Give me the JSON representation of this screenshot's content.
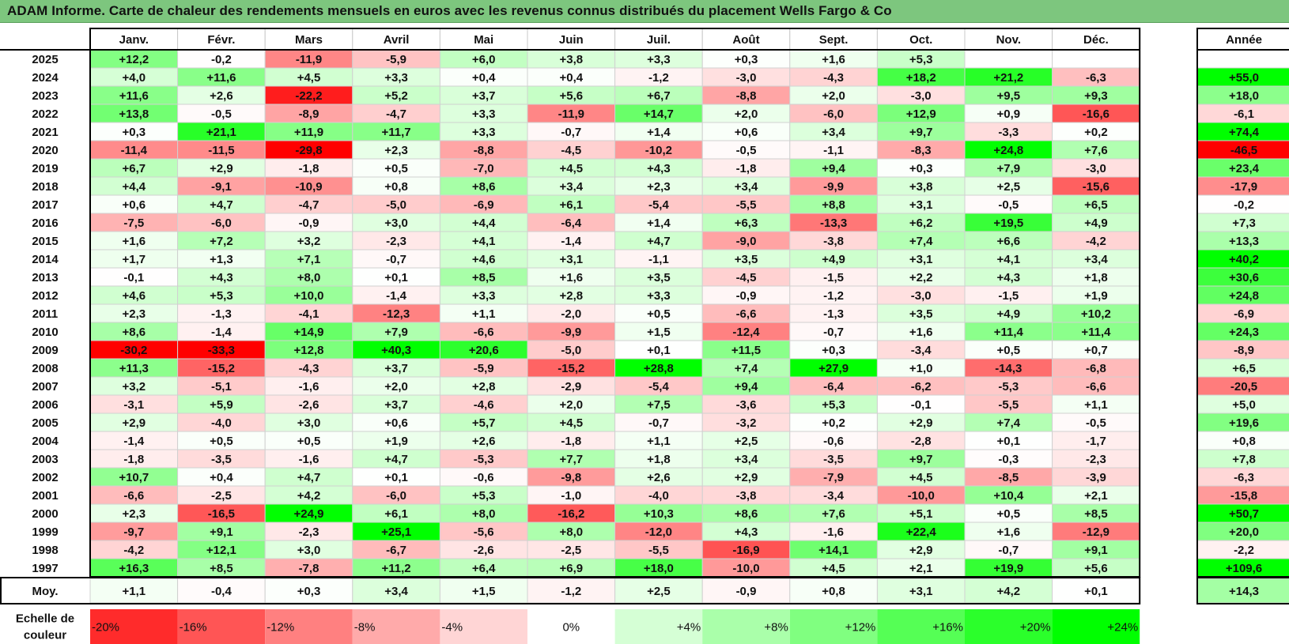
{
  "title": "ADAM Informe. Carte de chaleur des rendements mensuels en euros avec les revenus connus distribués du placement Wells Fargo & Co",
  "chart_data": {
    "type": "heatmap",
    "columns": [
      "Janv.",
      "Févr.",
      "Mars",
      "Avril",
      "Mai",
      "Juin",
      "Juil.",
      "Août",
      "Sept.",
      "Oct.",
      "Nov.",
      "Déc."
    ],
    "year_column_label": "Année",
    "average_row_label": "Moy.",
    "rows": [
      {
        "year": "2025",
        "months": [
          12.2,
          -0.2,
          -11.9,
          -5.9,
          6.0,
          3.8,
          3.3,
          0.3,
          1.6,
          5.3,
          null,
          null
        ],
        "annual": null
      },
      {
        "year": "2024",
        "months": [
          4.0,
          11.6,
          4.5,
          3.3,
          0.4,
          0.4,
          -1.2,
          -3.0,
          -4.3,
          18.2,
          21.2,
          -6.3
        ],
        "annual": 55.0
      },
      {
        "year": "2023",
        "months": [
          11.6,
          2.6,
          -22.2,
          5.2,
          3.7,
          5.6,
          6.7,
          -8.8,
          2.0,
          -3.0,
          9.5,
          9.3
        ],
        "annual": 18.0
      },
      {
        "year": "2022",
        "months": [
          13.8,
          -0.5,
          -8.9,
          -4.7,
          3.3,
          -11.9,
          14.7,
          2.0,
          -6.0,
          12.9,
          0.9,
          -16.6
        ],
        "annual": -6.1
      },
      {
        "year": "2021",
        "months": [
          0.3,
          21.1,
          11.9,
          11.7,
          3.3,
          -0.7,
          1.4,
          0.6,
          3.4,
          9.7,
          -3.3,
          0.2
        ],
        "annual": 74.4
      },
      {
        "year": "2020",
        "months": [
          -11.4,
          -11.5,
          -29.8,
          2.3,
          -8.8,
          -4.5,
          -10.2,
          -0.5,
          -1.1,
          -8.3,
          24.8,
          7.6
        ],
        "annual": -46.5
      },
      {
        "year": "2019",
        "months": [
          6.7,
          2.9,
          -1.8,
          0.5,
          -7.0,
          4.5,
          4.3,
          -1.8,
          9.4,
          0.3,
          7.9,
          -3.0
        ],
        "annual": 23.4
      },
      {
        "year": "2018",
        "months": [
          4.4,
          -9.1,
          -10.9,
          0.8,
          8.6,
          3.4,
          2.3,
          3.4,
          -9.9,
          3.8,
          2.5,
          -15.6
        ],
        "annual": -17.9
      },
      {
        "year": "2017",
        "months": [
          0.6,
          4.7,
          -4.7,
          -5.0,
          -6.9,
          6.1,
          -5.4,
          -5.5,
          8.8,
          3.1,
          -0.5,
          6.5
        ],
        "annual": -0.2
      },
      {
        "year": "2016",
        "months": [
          -7.5,
          -6.0,
          -0.9,
          3.0,
          4.4,
          -6.4,
          1.4,
          6.3,
          -13.3,
          6.2,
          19.5,
          4.9
        ],
        "annual": 7.3
      },
      {
        "year": "2015",
        "months": [
          1.6,
          7.2,
          3.2,
          -2.3,
          4.1,
          -1.4,
          4.7,
          -9.0,
          -3.8,
          7.4,
          6.6,
          -4.2
        ],
        "annual": 13.3
      },
      {
        "year": "2014",
        "months": [
          1.7,
          1.3,
          7.1,
          -0.7,
          4.6,
          3.1,
          -1.1,
          3.5,
          4.9,
          3.1,
          4.1,
          3.4
        ],
        "annual": 40.2
      },
      {
        "year": "2013",
        "months": [
          -0.1,
          4.3,
          8.0,
          0.1,
          8.5,
          1.6,
          3.5,
          -4.5,
          -1.5,
          2.2,
          4.3,
          1.8
        ],
        "annual": 30.6
      },
      {
        "year": "2012",
        "months": [
          4.6,
          5.3,
          10.0,
          -1.4,
          3.3,
          2.8,
          3.3,
          -0.9,
          -1.2,
          -3.0,
          -1.5,
          1.9
        ],
        "annual": 24.8
      },
      {
        "year": "2011",
        "months": [
          2.3,
          -1.3,
          -4.1,
          -12.3,
          1.1,
          -2.0,
          0.5,
          -6.6,
          -1.3,
          3.5,
          4.9,
          10.2
        ],
        "annual": -6.9
      },
      {
        "year": "2010",
        "months": [
          8.6,
          -1.4,
          14.9,
          7.9,
          -6.6,
          -9.9,
          1.5,
          -12.4,
          -0.7,
          1.6,
          11.4,
          11.4
        ],
        "annual": 24.3
      },
      {
        "year": "2009",
        "months": [
          -30.2,
          -33.3,
          12.8,
          40.3,
          20.6,
          -5.0,
          0.1,
          11.5,
          0.3,
          -3.4,
          0.5,
          0.7
        ],
        "annual": -8.9
      },
      {
        "year": "2008",
        "months": [
          11.3,
          -15.2,
          -4.3,
          3.7,
          -5.9,
          -15.2,
          28.8,
          7.4,
          27.9,
          1.0,
          -14.3,
          -6.8
        ],
        "annual": 6.5
      },
      {
        "year": "2007",
        "months": [
          3.2,
          -5.1,
          -1.6,
          2.0,
          2.8,
          -2.9,
          -5.4,
          9.4,
          -6.4,
          -6.2,
          -5.3,
          -6.6
        ],
        "annual": -20.5
      },
      {
        "year": "2006",
        "months": [
          -3.1,
          5.9,
          -2.6,
          3.7,
          -4.6,
          2.0,
          7.5,
          -3.6,
          5.3,
          -0.1,
          -5.5,
          1.1
        ],
        "annual": 5.0
      },
      {
        "year": "2005",
        "months": [
          2.9,
          -4.0,
          3.0,
          0.6,
          5.7,
          4.5,
          -0.7,
          -3.2,
          0.2,
          2.9,
          7.4,
          -0.5
        ],
        "annual": 19.6
      },
      {
        "year": "2004",
        "months": [
          -1.4,
          0.5,
          0.5,
          1.9,
          2.6,
          -1.8,
          1.1,
          2.5,
          -0.6,
          -2.8,
          0.1,
          -1.7
        ],
        "annual": 0.8
      },
      {
        "year": "2003",
        "months": [
          -1.8,
          -3.5,
          -1.6,
          4.7,
          -5.3,
          7.7,
          1.8,
          3.4,
          -3.5,
          9.7,
          -0.3,
          -2.3
        ],
        "annual": 7.8
      },
      {
        "year": "2002",
        "months": [
          10.7,
          0.4,
          4.7,
          0.1,
          -0.6,
          -9.8,
          2.6,
          2.9,
          -7.9,
          4.5,
          -8.5,
          -3.9
        ],
        "annual": -6.3
      },
      {
        "year": "2001",
        "months": [
          -6.6,
          -2.5,
          4.2,
          -6.0,
          5.3,
          -1.0,
          -4.0,
          -3.8,
          -3.4,
          -10.0,
          10.4,
          2.1
        ],
        "annual": -15.8
      },
      {
        "year": "2000",
        "months": [
          2.3,
          -16.5,
          24.9,
          6.1,
          8.0,
          -16.2,
          10.3,
          8.6,
          7.6,
          5.1,
          0.5,
          8.5
        ],
        "annual": 50.7
      },
      {
        "year": "1999",
        "months": [
          -9.7,
          9.1,
          -2.3,
          25.1,
          -5.6,
          8.0,
          -12.0,
          4.3,
          -1.6,
          22.4,
          1.6,
          -12.9
        ],
        "annual": 20.0
      },
      {
        "year": "1998",
        "months": [
          -4.2,
          12.1,
          3.0,
          -6.7,
          -2.6,
          -2.5,
          -5.5,
          -16.9,
          14.1,
          2.9,
          -0.7,
          9.1
        ],
        "annual": -2.2
      },
      {
        "year": "1997",
        "months": [
          16.3,
          8.5,
          -7.8,
          11.2,
          6.4,
          6.9,
          18.0,
          -10.0,
          4.5,
          2.1,
          19.9,
          5.6
        ],
        "annual": 109.6
      }
    ],
    "average": {
      "months": [
        1.1,
        -0.4,
        0.3,
        3.4,
        1.5,
        -1.2,
        2.5,
        -0.9,
        0.8,
        3.1,
        4.2,
        0.1
      ],
      "annual": 14.3
    },
    "color_scale": {
      "label": "Echelle de couleur",
      "stops": [
        {
          "value": -20,
          "label": "-20%"
        },
        {
          "value": -16,
          "label": "-16%"
        },
        {
          "value": -12,
          "label": "-12%"
        },
        {
          "value": -8,
          "label": "-8%"
        },
        {
          "value": -4,
          "label": "-4%"
        },
        {
          "value": 0,
          "label": "0%"
        },
        {
          "value": 4,
          "label": "+4%"
        },
        {
          "value": 8,
          "label": "+8%"
        },
        {
          "value": 12,
          "label": "+12%"
        },
        {
          "value": 16,
          "label": "+16%"
        },
        {
          "value": 20,
          "label": "+20%"
        },
        {
          "value": 24,
          "label": "+24%"
        }
      ],
      "colors": {
        "negative": "#ff0000",
        "neutral": "#ffffff",
        "positive": "#00ff00"
      }
    }
  }
}
